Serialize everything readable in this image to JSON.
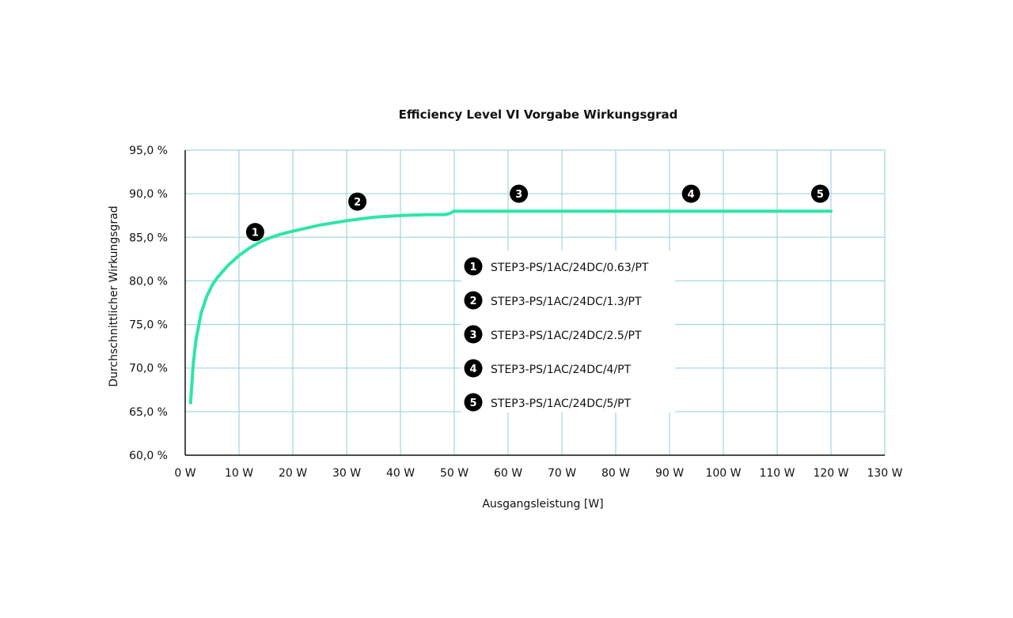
{
  "chart_data": {
    "type": "line",
    "title": "Efficiency Level VI Vorgabe Wirkungsgrad",
    "xlabel": "Ausgangsleistung [W]",
    "ylabel": "Durchschnittlicher Wirkungsgrad",
    "xlim": [
      0,
      130
    ],
    "ylim": [
      60,
      95
    ],
    "x_ticks": [
      0,
      10,
      20,
      30,
      40,
      50,
      60,
      70,
      80,
      90,
      100,
      110,
      120,
      130
    ],
    "x_tick_labels": [
      "0 W",
      "10 W",
      "20 W",
      "30 W",
      "40 W",
      "50 W",
      "60 W",
      "70 W",
      "80 W",
      "90 W",
      "100 W",
      "110 W",
      "120 W",
      "130 W"
    ],
    "y_ticks": [
      60,
      65,
      70,
      75,
      80,
      85,
      90,
      95
    ],
    "y_tick_labels": [
      "60,0 %",
      "65,0 %",
      "70,0 %",
      "75,0 %",
      "80,0 %",
      "85,0 %",
      "90,0 %",
      "95,0 %"
    ],
    "grid": true,
    "series": [
      {
        "values_x": [
          1,
          1.5,
          2,
          3,
          4,
          5,
          6,
          8,
          10,
          12,
          14,
          16,
          18,
          20,
          25,
          30,
          35,
          40,
          45,
          48,
          49,
          50,
          55,
          60,
          70,
          80,
          90,
          100,
          110,
          120
        ],
        "values_y": [
          66,
          70.5,
          73.2,
          76.4,
          78.2,
          79.5,
          80.4,
          81.8,
          82.9,
          83.8,
          84.5,
          85.0,
          85.4,
          85.7,
          86.4,
          86.9,
          87.3,
          87.5,
          87.6,
          87.6,
          87.7,
          88.0,
          88.0,
          88.0,
          88.0,
          88.0,
          88.0,
          88.0,
          88.0,
          88.0
        ],
        "color": "#2ee6a6"
      }
    ],
    "markers": [
      {
        "label": "1",
        "x": 13,
        "y": 85.6
      },
      {
        "label": "2",
        "x": 32,
        "y": 89.1
      },
      {
        "label": "3",
        "x": 62,
        "y": 90.0
      },
      {
        "label": "4",
        "x": 94,
        "y": 90.0
      },
      {
        "label": "5",
        "x": 118,
        "y": 90.0
      }
    ],
    "legend": {
      "placement": "center",
      "entries": [
        {
          "num": "1",
          "label": "STEP3-PS/1AC/24DC/0.63/PT"
        },
        {
          "num": "2",
          "label": "STEP3-PS/1AC/24DC/1.3/PT"
        },
        {
          "num": "3",
          "label": "STEP3-PS/1AC/24DC/2.5/PT"
        },
        {
          "num": "4",
          "label": "STEP3-PS/1AC/24DC/4/PT"
        },
        {
          "num": "5",
          "label": "STEP3-PS/1AC/24DC/5/PT"
        }
      ]
    },
    "colors": {
      "line": "#2ee6a6",
      "grid": "#a8d8e0",
      "marker": "#000000",
      "axis": "#111111"
    }
  }
}
